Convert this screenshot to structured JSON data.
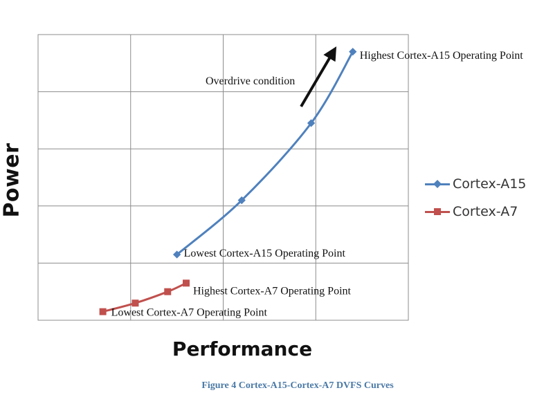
{
  "chart_data": {
    "type": "line",
    "title": "",
    "xlabel": "Performance",
    "ylabel": "Power",
    "xlim": [
      0,
      8
    ],
    "ylim": [
      0,
      5
    ],
    "grid": true,
    "legend_position": "right",
    "series": [
      {
        "name": "Cortex-A15",
        "color": "#4f81bd",
        "marker": "diamond",
        "points": [
          [
            3.0,
            1.15
          ],
          [
            4.4,
            2.1
          ],
          [
            5.9,
            3.45
          ],
          [
            6.8,
            4.7
          ]
        ]
      },
      {
        "name": "Cortex-A7",
        "color": "#c0504d",
        "marker": "square",
        "points": [
          [
            1.4,
            0.15
          ],
          [
            2.1,
            0.3
          ],
          [
            2.8,
            0.5
          ],
          [
            3.2,
            0.65
          ]
        ]
      }
    ],
    "annotations": [
      {
        "text": "Highest Cortex-A15 Operating Point",
        "series": 0,
        "point": 3
      },
      {
        "text": "Lowest Cortex-A15 Operating Point",
        "series": 0,
        "point": 0
      },
      {
        "text": "Highest Cortex-A7 Operating Point",
        "series": 1,
        "point": 3
      },
      {
        "text": "Lowest Cortex-A7 Operating Point",
        "series": 1,
        "point": 0
      },
      {
        "text": "Overdrive condition",
        "series": null,
        "point": null
      }
    ]
  },
  "caption": "Figure 4 Cortex-A15-Cortex-A7 DVFS Curves"
}
